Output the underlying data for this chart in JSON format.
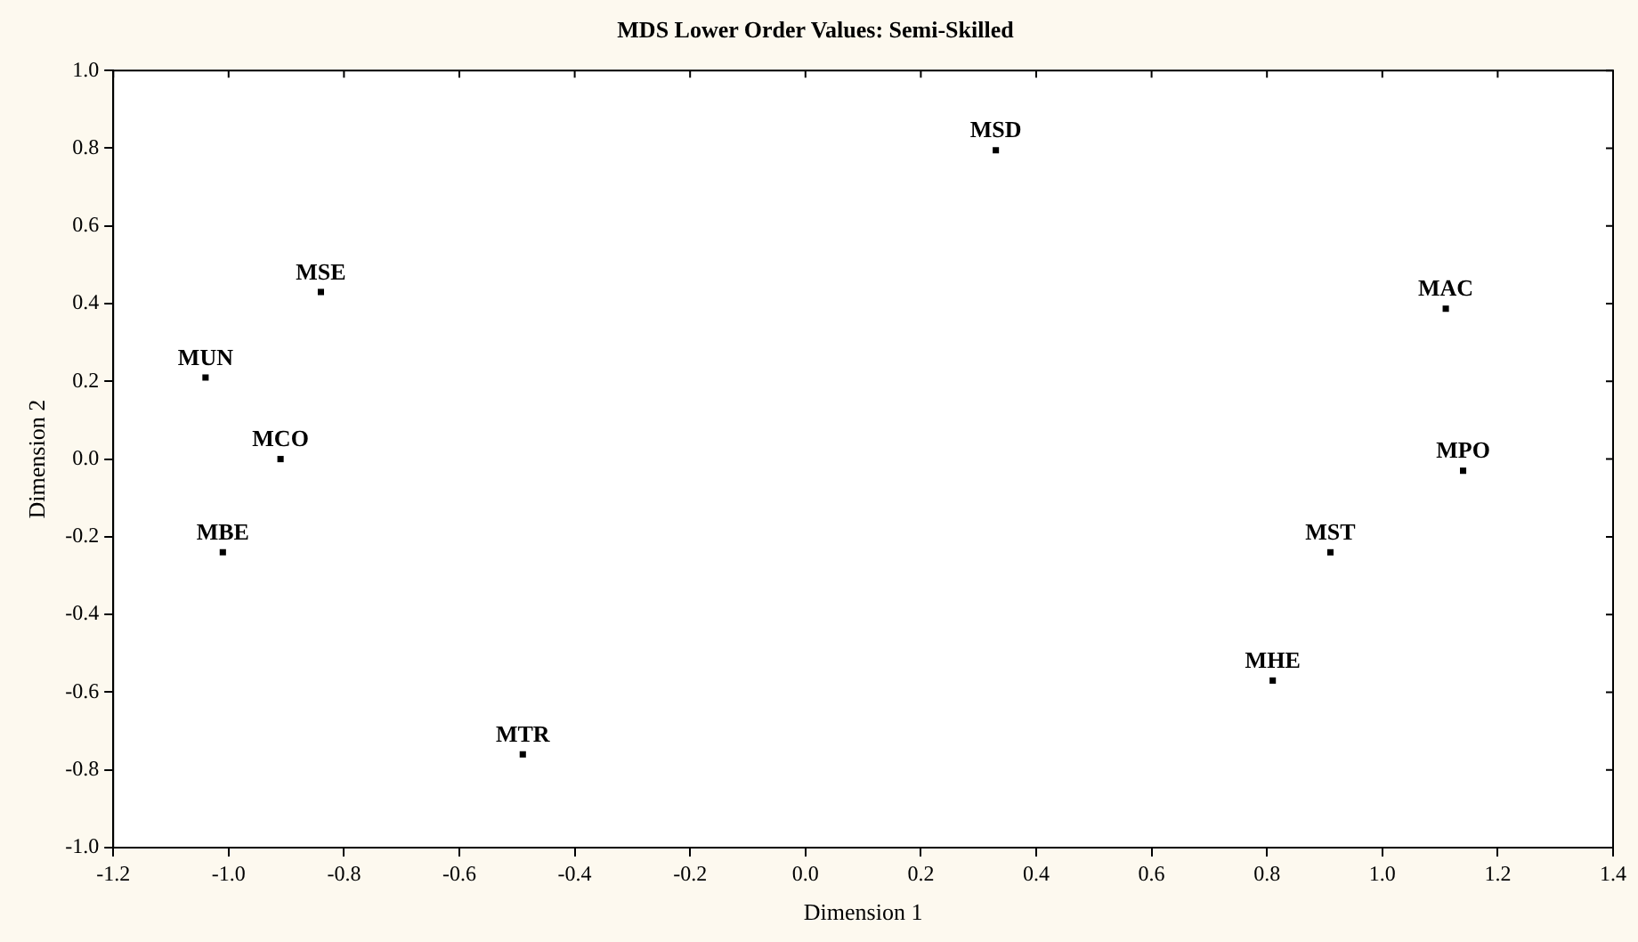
{
  "chart_data": {
    "type": "scatter",
    "title": "MDS Lower Order Values: Semi-Skilled",
    "xlabel": "Dimension 1",
    "ylabel": "Dimension 2",
    "x": [
      -0.84,
      -1.04,
      -0.91,
      -1.01,
      -0.49,
      0.33,
      1.11,
      1.14,
      0.91,
      0.81
    ],
    "values": [
      0.43,
      0.21,
      0.0,
      -0.24,
      -0.76,
      0.795,
      0.387,
      -0.03,
      -0.24,
      -0.57
    ],
    "color": "#000000",
    "marker": "square",
    "grid": false,
    "legend": false,
    "xlim": [
      -1.2,
      1.4
    ],
    "xticks": [
      {
        "value": -1.2,
        "label": "-1.2"
      },
      {
        "value": -1.0,
        "label": "-1.0"
      },
      {
        "value": -0.8,
        "label": "-0.8"
      },
      {
        "value": -0.6,
        "label": "-0.6"
      },
      {
        "value": -0.4,
        "label": "-0.4"
      },
      {
        "value": -0.2,
        "label": "-0.2"
      },
      {
        "value": 0,
        "label": "0.0"
      },
      {
        "value": 0.2,
        "label": "0.2"
      },
      {
        "value": 0.4,
        "label": "0.4"
      },
      {
        "value": 0.6,
        "label": "0.6"
      },
      {
        "value": 0.8,
        "label": "0.8"
      },
      {
        "value": 1.0,
        "label": "1.0"
      },
      {
        "value": 1.2,
        "label": "1.2"
      },
      {
        "value": 1.4,
        "label": "1.4"
      }
    ],
    "ylim": [
      -1.0,
      1.0
    ],
    "yticks": [
      {
        "value": -1.0,
        "label": "-1.0"
      },
      {
        "value": -0.8,
        "label": "-0.8"
      },
      {
        "value": -0.6,
        "label": "-0.6"
      },
      {
        "value": -0.4,
        "label": "-0.4"
      },
      {
        "value": -0.2,
        "label": "-0.2"
      },
      {
        "value": 0,
        "label": "0.0"
      },
      {
        "value": 0.2,
        "label": "0.2"
      },
      {
        "value": 0.4,
        "label": "0.4"
      },
      {
        "value": 0.6,
        "label": "0.6"
      },
      {
        "value": 0.8,
        "label": "0.8"
      },
      {
        "value": 1.0,
        "label": "1.0"
      }
    ],
    "annotations": [
      {
        "text": "MSE",
        "x": -0.84,
        "y": 0.43
      },
      {
        "text": "MUN",
        "x": -1.04,
        "y": 0.21
      },
      {
        "text": "MCO",
        "x": -0.91,
        "y": 0.0
      },
      {
        "text": "MBE",
        "x": -1.01,
        "y": -0.24
      },
      {
        "text": "MTR",
        "x": -0.49,
        "y": -0.76
      },
      {
        "text": "MSD",
        "x": 0.33,
        "y": 0.795
      },
      {
        "text": "MAC",
        "x": 1.11,
        "y": 0.387
      },
      {
        "text": "MPO",
        "x": 1.14,
        "y": -0.03
      },
      {
        "text": "MST",
        "x": 0.91,
        "y": -0.24
      },
      {
        "text": "MHE",
        "x": 0.81,
        "y": -0.57
      }
    ]
  }
}
